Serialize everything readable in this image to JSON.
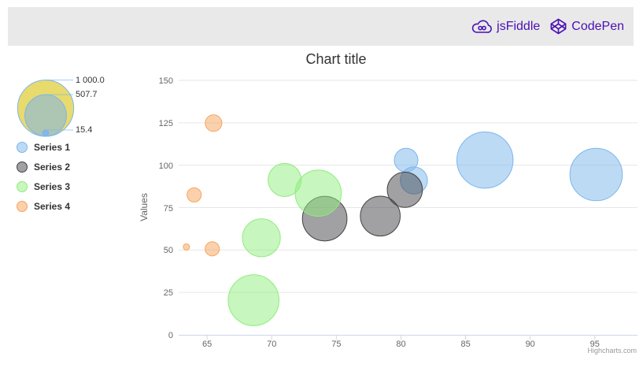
{
  "header": {
    "links": [
      {
        "label": "jsFiddle",
        "icon": "jsfiddle-cloud-icon"
      },
      {
        "label": "CodePen",
        "icon": "codepen-cube-icon"
      }
    ],
    "link_color": "#4a10b4",
    "bar_color": "#e9e9e9"
  },
  "credits": "Highcharts.com",
  "chart_data": {
    "type": "bubble",
    "title": "Chart title",
    "xlabel": "",
    "ylabel": "Values",
    "xlim": [
      62.8,
      98.3
    ],
    "ylim": [
      0,
      150
    ],
    "x_ticks": [
      65,
      70,
      75,
      80,
      85,
      90,
      95
    ],
    "y_ticks": [
      0,
      25,
      50,
      75,
      100,
      125,
      150
    ],
    "grid": true,
    "legend_position": "left",
    "axis_line_color": "#ccd6eb",
    "grid_color": "#e6e6e6",
    "bubble_legend": {
      "labels": [
        "1 000.0",
        "507.7",
        "15.4"
      ],
      "values": [
        1000.0,
        507.7,
        15.4
      ],
      "z_min": 15.4,
      "z_max": 1000,
      "outer_fill": "#e4d354",
      "ring_color": "#7cb5ec"
    },
    "series": [
      {
        "name": "Series 1",
        "color": "#7cb5ec",
        "points": [
          {
            "x": 80.4,
            "y": 103,
            "z": 134
          },
          {
            "x": 81.0,
            "y": 91,
            "z": 186
          },
          {
            "x": 86.5,
            "y": 103,
            "z": 1000
          },
          {
            "x": 95.1,
            "y": 94.5,
            "z": 856
          }
        ]
      },
      {
        "name": "Series 2",
        "color": "#434348",
        "points": [
          {
            "x": 74.1,
            "y": 68.5,
            "z": 595
          },
          {
            "x": 78.4,
            "y": 70,
            "z": 460
          },
          {
            "x": 80.3,
            "y": 85.5,
            "z": 345
          }
        ]
      },
      {
        "name": "Series 3",
        "color": "#90ed7d",
        "points": [
          {
            "x": 71.0,
            "y": 91.3,
            "z": 300
          },
          {
            "x": 73.6,
            "y": 83.5,
            "z": 643
          },
          {
            "x": 69.2,
            "y": 57.2,
            "z": 410
          },
          {
            "x": 68.6,
            "y": 20.4,
            "z": 800
          }
        ]
      },
      {
        "name": "Series 4",
        "color": "#f7a35c",
        "points": [
          {
            "x": 65.5,
            "y": 124.8,
            "z": 57
          },
          {
            "x": 64.0,
            "y": 82.5,
            "z": 40
          },
          {
            "x": 63.4,
            "y": 51.8,
            "z": 15.4
          },
          {
            "x": 65.4,
            "y": 50.7,
            "z": 40
          }
        ]
      }
    ]
  }
}
